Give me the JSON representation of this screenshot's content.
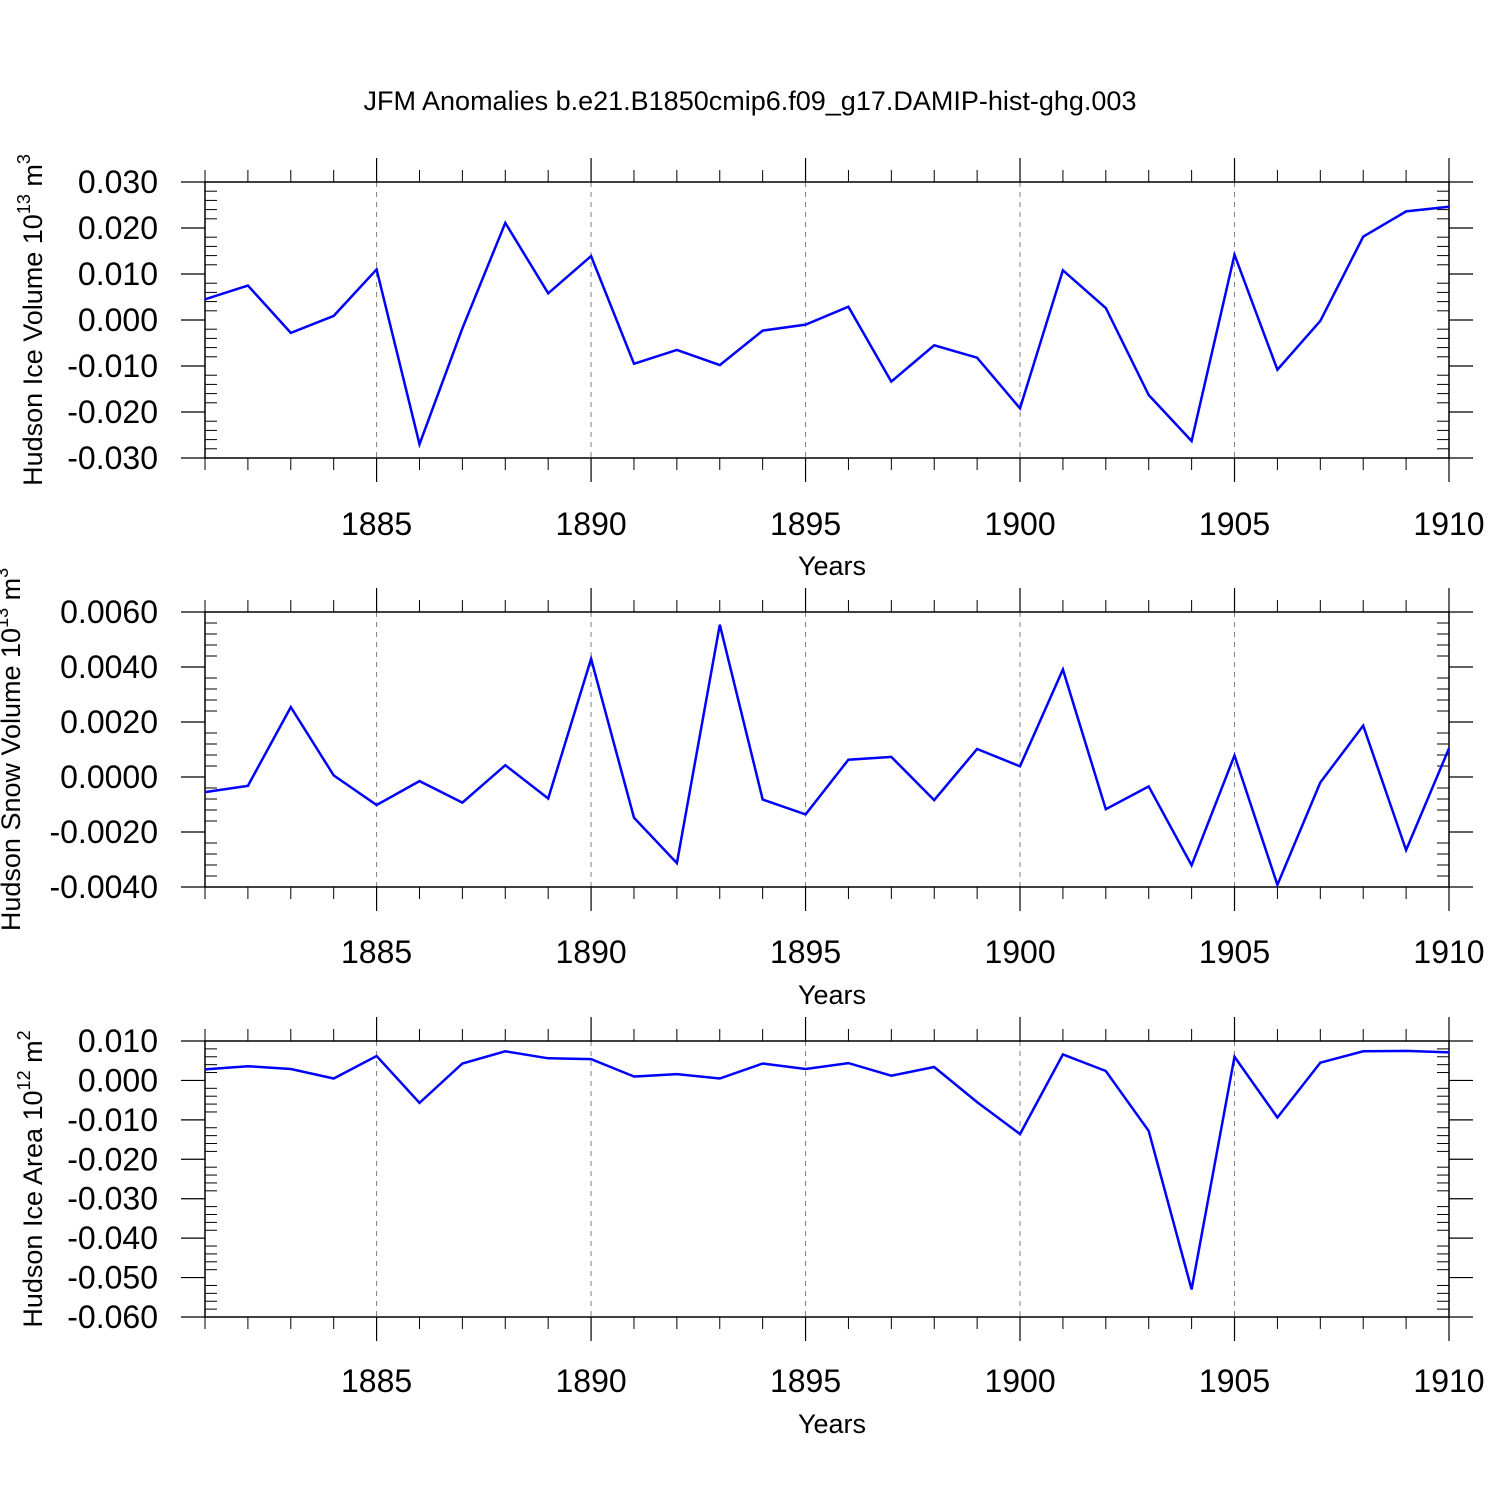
{
  "figure": {
    "title": "JFM Anomalies b.e21.B1850cmip6.f09_g17.DAMIP-hist-ghg.003"
  },
  "chart_data": [
    {
      "type": "line",
      "title": "",
      "xlabel": "Years",
      "ylabel": "Hudson Ice Volume",
      "ylabel_unit_base": "10",
      "ylabel_unit_exp": "13",
      "ylabel_unit": "m",
      "ylabel_unit_pow": "3",
      "xlim": [
        1881,
        1910
      ],
      "ylim": [
        -0.03,
        0.03
      ],
      "x_ticks": [
        1885,
        1890,
        1895,
        1900,
        1905,
        1910
      ],
      "y_ticks": [
        0.03,
        0.02,
        0.01,
        0.0,
        -0.01,
        -0.02,
        -0.03
      ],
      "y_tick_labels": [
        "0.030",
        "0.020",
        "0.010",
        "0.000",
        "-0.010",
        "-0.020",
        "-0.030"
      ],
      "color": "#0000ff",
      "x": [
        1881,
        1882,
        1883,
        1884,
        1885,
        1886,
        1887,
        1888,
        1889,
        1890,
        1891,
        1892,
        1893,
        1894,
        1895,
        1896,
        1897,
        1898,
        1899,
        1900,
        1901,
        1902,
        1903,
        1904,
        1905,
        1906,
        1907,
        1908,
        1909,
        1910
      ],
      "values": [
        0.0045,
        0.0075,
        -0.0028,
        0.0009,
        0.011,
        -0.027,
        -0.0018,
        0.0211,
        0.0058,
        0.0139,
        -0.0095,
        -0.0065,
        -0.0098,
        -0.0023,
        -0.001,
        0.0029,
        -0.0134,
        -0.0055,
        -0.0082,
        -0.0192,
        0.0108,
        0.0026,
        -0.0163,
        -0.0263,
        0.0142,
        -0.0108,
        -0.0002,
        0.0181,
        0.0236,
        0.0246
      ]
    },
    {
      "type": "line",
      "title": "",
      "xlabel": "Years",
      "ylabel": "Hudson Snow Volume",
      "ylabel_unit_base": "10",
      "ylabel_unit_exp": "13",
      "ylabel_unit": "m",
      "ylabel_unit_pow": "3",
      "xlim": [
        1881,
        1910
      ],
      "ylim": [
        -0.004,
        0.006
      ],
      "x_ticks": [
        1885,
        1890,
        1895,
        1900,
        1905,
        1910
      ],
      "y_ticks": [
        0.006,
        0.004,
        0.002,
        0.0,
        -0.002,
        -0.004
      ],
      "y_tick_labels": [
        "0.0060",
        "0.0040",
        "0.0020",
        "0.0000",
        "-0.0020",
        "-0.0040"
      ],
      "color": "#0000ff",
      "x": [
        1881,
        1882,
        1883,
        1884,
        1885,
        1886,
        1887,
        1888,
        1889,
        1890,
        1891,
        1892,
        1893,
        1894,
        1895,
        1896,
        1897,
        1898,
        1899,
        1900,
        1901,
        1902,
        1903,
        1904,
        1905,
        1906,
        1907,
        1908,
        1909,
        1910
      ],
      "values": [
        -0.00055,
        -0.00032,
        0.00254,
        6e-05,
        -0.00102,
        -0.00015,
        -0.00093,
        0.00043,
        -0.00078,
        0.0043,
        -0.00148,
        -0.00313,
        0.00554,
        -0.00082,
        -0.00136,
        0.00063,
        0.00073,
        -0.00084,
        0.00102,
        0.00039,
        0.00391,
        -0.00117,
        -0.00034,
        -0.00321,
        0.00078,
        -0.00392,
        -0.0002,
        0.00187,
        -0.00266,
        0.00104
      ]
    },
    {
      "type": "line",
      "title": "",
      "xlabel": "Years",
      "ylabel": "Hudson Ice Area",
      "ylabel_unit_base": "10",
      "ylabel_unit_exp": "12",
      "ylabel_unit": "m",
      "ylabel_unit_pow": "2",
      "xlim": [
        1881,
        1910
      ],
      "ylim": [
        -0.06,
        0.01
      ],
      "x_ticks": [
        1885,
        1890,
        1895,
        1900,
        1905,
        1910
      ],
      "y_ticks": [
        0.01,
        0.0,
        -0.01,
        -0.02,
        -0.03,
        -0.04,
        -0.05,
        -0.06
      ],
      "y_tick_labels": [
        "0.010",
        "0.000",
        "-0.010",
        "-0.020",
        "-0.030",
        "-0.040",
        "-0.050",
        "-0.060"
      ],
      "color": "#0000ff",
      "x": [
        1881,
        1882,
        1883,
        1884,
        1885,
        1886,
        1887,
        1888,
        1889,
        1890,
        1891,
        1892,
        1893,
        1894,
        1895,
        1896,
        1897,
        1898,
        1899,
        1900,
        1901,
        1902,
        1903,
        1904,
        1905,
        1906,
        1907,
        1908,
        1909,
        1910
      ],
      "values": [
        0.0028,
        0.0036,
        0.0029,
        0.0005,
        0.0062,
        -0.0057,
        0.0043,
        0.0074,
        0.0056,
        0.0054,
        0.001,
        0.0016,
        0.0005,
        0.0043,
        0.0029,
        0.0044,
        0.0012,
        0.0034,
        -0.0055,
        -0.0136,
        0.0066,
        0.0024,
        -0.0128,
        -0.053,
        0.006,
        -0.0094,
        0.0045,
        0.0074,
        0.0075,
        0.0071
      ]
    }
  ]
}
